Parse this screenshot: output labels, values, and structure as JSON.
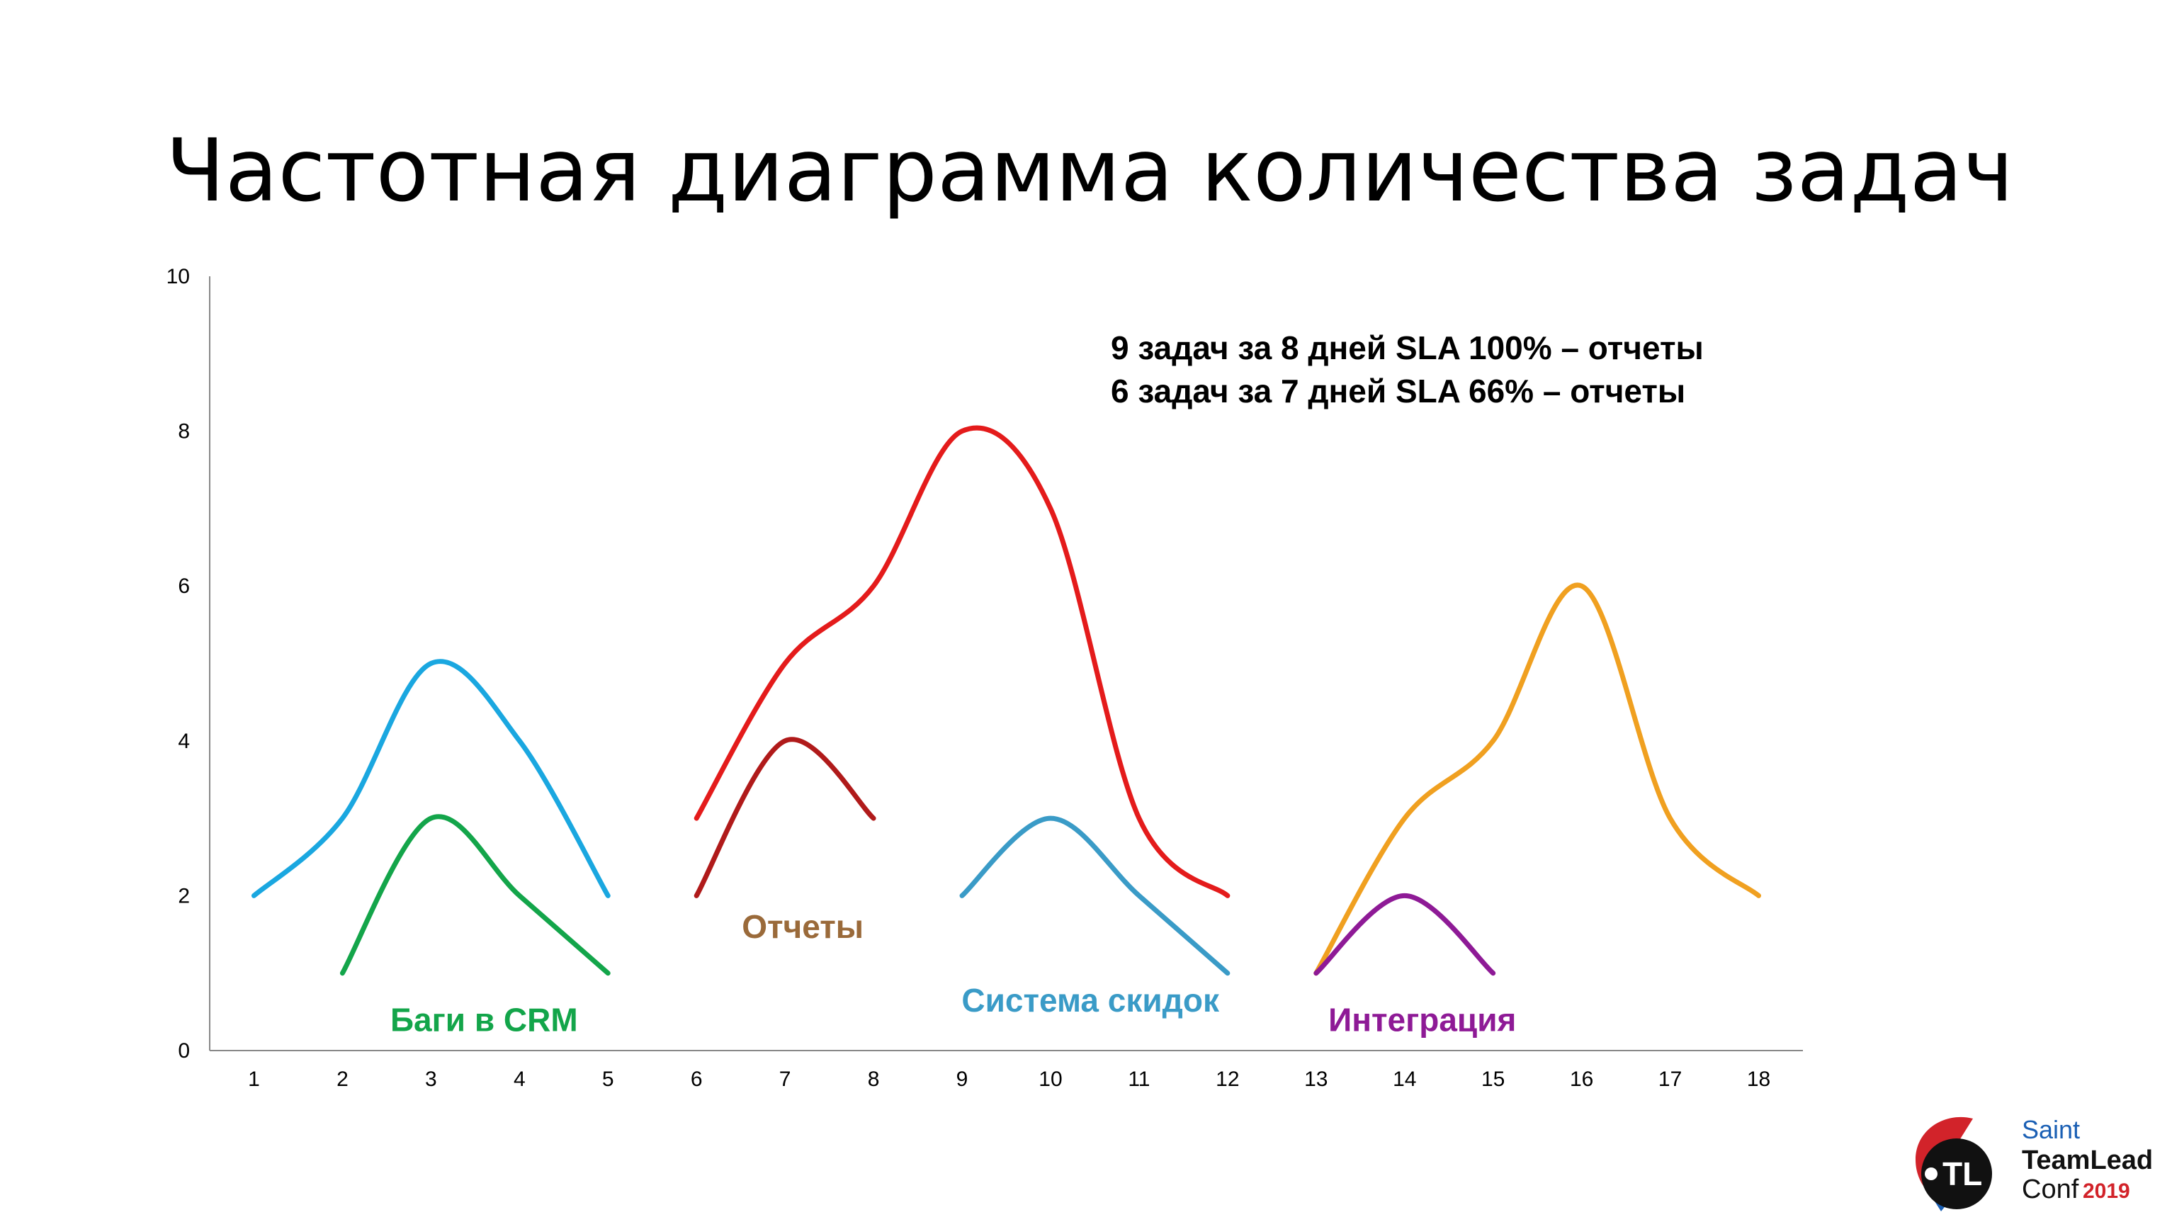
{
  "title": "Частотная диаграмма количества задач",
  "annotations": [
    "9 задач за 8 дней SLA 100% – отчеты",
    "6 задач за 7 дней SLA 66% – отчеты"
  ],
  "logo": {
    "line1": "Saint",
    "line2": "TeamLead",
    "line3": "Conf",
    "year": "2019",
    "mark": "TL",
    "colors": {
      "red": "#d2232a",
      "blue": "#1a5fb4",
      "dark": "#111111"
    }
  },
  "chart_data": {
    "type": "line",
    "x": [
      1,
      2,
      3,
      4,
      5,
      6,
      7,
      8,
      9,
      10,
      11,
      12,
      13,
      14,
      15,
      16,
      17,
      18
    ],
    "xlim": [
      0.5,
      18.5
    ],
    "ylim": [
      0,
      10
    ],
    "yticks": [
      0,
      2,
      4,
      6,
      8,
      10
    ],
    "grid": false,
    "smooth": true,
    "series": [
      {
        "x": [
          1,
          2,
          3,
          4,
          5
        ],
        "y": [
          2,
          3,
          5,
          4,
          2
        ],
        "color": "#1aa7e0"
      },
      {
        "x": [
          2,
          3,
          4,
          5
        ],
        "y": [
          1,
          3,
          2,
          1
        ],
        "color": "#13a54a"
      },
      {
        "x": [
          6,
          7,
          8,
          9,
          10,
          11,
          12
        ],
        "y": [
          3,
          5,
          6,
          8,
          7,
          3,
          2
        ],
        "color": "#e41b1b"
      },
      {
        "x": [
          6,
          7,
          8
        ],
        "y": [
          2,
          4,
          3
        ],
        "color": "#b01a1a"
      },
      {
        "x": [
          9,
          10,
          11,
          12
        ],
        "y": [
          2,
          3,
          2,
          1
        ],
        "color": "#3a9bc7"
      },
      {
        "x": [
          13,
          14,
          15,
          16,
          17,
          18
        ],
        "y": [
          1,
          3,
          4,
          6,
          3,
          2
        ],
        "color": "#f0a020"
      },
      {
        "x": [
          13,
          14,
          15
        ],
        "y": [
          1,
          2,
          1
        ],
        "color": "#8e1a96"
      }
    ],
    "labels": [
      {
        "text": "Баги в CRM",
        "x": 3.6,
        "y": 0.4,
        "color": "#13a54a"
      },
      {
        "text": "Отчеты",
        "x": 7.2,
        "y": 1.6,
        "color": "#9a6a3a"
      },
      {
        "text": "Система скидок",
        "x": 10.45,
        "y": 0.65,
        "color": "#3a9bc7"
      },
      {
        "text": "Интеграция",
        "x": 14.2,
        "y": 0.4,
        "color": "#8e1a96"
      }
    ]
  }
}
